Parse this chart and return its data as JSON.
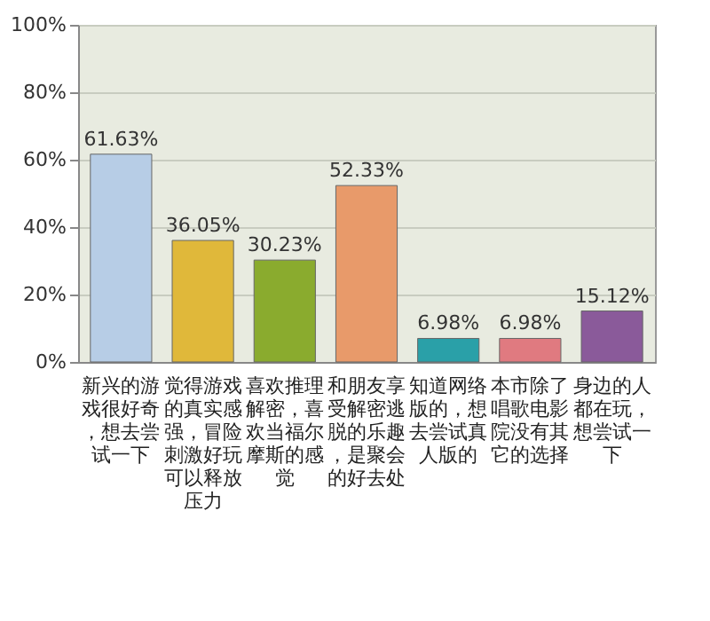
{
  "chart_data": {
    "type": "bar",
    "categories": [
      "新兴的游戏很好奇，想去尝试一下",
      "觉得游戏的真实感强，冒险刺激好玩可以释放压力",
      "喜欢推理解密，喜欢当福尔摩斯的感觉",
      "和朋友享受解密逃脱的乐趣，是聚会的好去处",
      "知道网络版的，想去尝试真人版的",
      "本市除了唱歌电影院没有其它的选择",
      "身边的人都在玩，想尝试一下"
    ],
    "values": [
      61.63,
      36.05,
      30.23,
      52.33,
      6.98,
      6.98,
      15.12
    ],
    "value_labels": [
      "61.63%",
      "36.05%",
      "30.23%",
      "52.33%",
      "6.98%",
      "6.98%",
      "15.12%"
    ],
    "colors": [
      "#b7cde6",
      "#e0b83a",
      "#8aab2e",
      "#e89a6a",
      "#2aa0a8",
      "#e07a80",
      "#8a5a9a"
    ],
    "ylim": [
      0,
      100
    ],
    "yticks": [
      {
        "value": 0,
        "label": "0%"
      },
      {
        "value": 20,
        "label": "20%"
      },
      {
        "value": 40,
        "label": "40%"
      },
      {
        "value": 60,
        "label": "60%"
      },
      {
        "value": 80,
        "label": "80%"
      },
      {
        "value": 100,
        "label": "100%"
      }
    ],
    "grid": "y"
  }
}
